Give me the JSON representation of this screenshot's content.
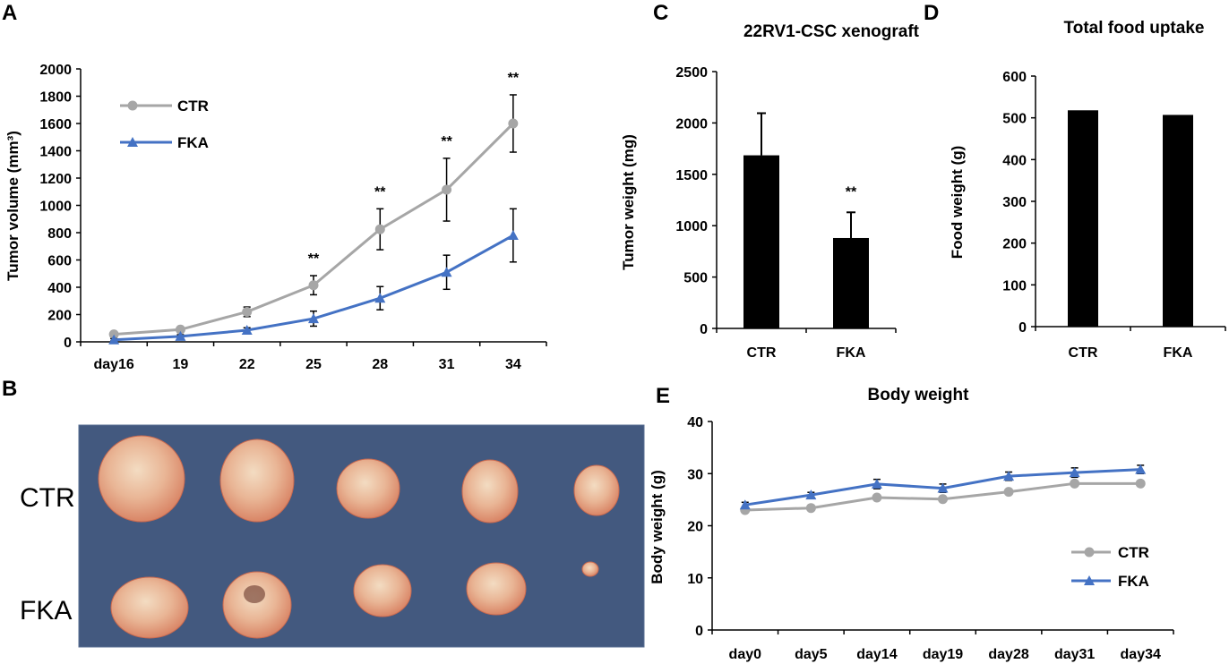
{
  "panels": {
    "A": "A",
    "B": "B",
    "C": "C",
    "D": "D",
    "E": "E"
  },
  "colors": {
    "ctr": "#a6a6a6",
    "fka": "#4472c4",
    "bar": "#000000",
    "photo_bg": "#43597f"
  },
  "chart_data": [
    {
      "id": "A",
      "type": "line",
      "title": "",
      "ylabel": "Tumor volume (mm³)",
      "xlabel": "",
      "categories": [
        "day16",
        "19",
        "22",
        "25",
        "28",
        "31",
        "34"
      ],
      "ylim": [
        0,
        2000
      ],
      "yticks": [
        0,
        200,
        400,
        600,
        800,
        1000,
        1200,
        1400,
        1600,
        1800,
        2000
      ],
      "series": [
        {
          "name": "CTR",
          "color": "#a6a6a6",
          "marker": "circle",
          "values": [
            55,
            90,
            220,
            415,
            825,
            1115,
            1600
          ],
          "errors": [
            12,
            18,
            35,
            70,
            150,
            230,
            210
          ]
        },
        {
          "name": "FKA",
          "color": "#4472c4",
          "marker": "triangle",
          "values": [
            15,
            40,
            85,
            170,
            320,
            510,
            780
          ],
          "errors": [
            8,
            12,
            18,
            55,
            85,
            125,
            195
          ]
        }
      ],
      "annotations": [
        {
          "category": "25",
          "text": "**"
        },
        {
          "category": "28",
          "text": "**"
        },
        {
          "category": "31",
          "text": "**"
        },
        {
          "category": "34",
          "text": "**"
        }
      ],
      "legend": "top-left"
    },
    {
      "id": "C",
      "type": "bar",
      "title": "22RV1-CSC xenograft",
      "ylabel": "Tumor weight (mg)",
      "xlabel": "",
      "categories": [
        "CTR",
        "FKA"
      ],
      "values": [
        1685,
        880
      ],
      "errors": [
        410,
        250
      ],
      "ylim": [
        0,
        2500
      ],
      "yticks": [
        0,
        500,
        1000,
        1500,
        2000,
        2500
      ],
      "annotations": [
        {
          "category": "FKA",
          "text": "**"
        }
      ]
    },
    {
      "id": "D",
      "type": "bar",
      "title": "Total food uptake",
      "ylabel": "Food weight (g)",
      "xlabel": "",
      "categories": [
        "CTR",
        "FKA"
      ],
      "values": [
        518,
        507
      ],
      "ylim": [
        0,
        600
      ],
      "yticks": [
        0,
        100,
        200,
        300,
        400,
        500,
        600
      ]
    },
    {
      "id": "E",
      "type": "line",
      "title": "Body weight",
      "ylabel": "Body weight (g)",
      "xlabel": "",
      "categories": [
        "day0",
        "day5",
        "day14",
        "day19",
        "day28",
        "day31",
        "day34"
      ],
      "ylim": [
        0,
        40
      ],
      "yticks": [
        0,
        10,
        20,
        30,
        40
      ],
      "series": [
        {
          "name": "CTR",
          "color": "#a6a6a6",
          "marker": "circle",
          "values": [
            23.0,
            23.4,
            25.4,
            25.1,
            26.5,
            28.1,
            28.1
          ],
          "errors": [
            0.3,
            0.3,
            0.3,
            0.3,
            0.4,
            0.4,
            0.4
          ]
        },
        {
          "name": "FKA",
          "color": "#4472c4",
          "marker": "triangle",
          "values": [
            24.0,
            25.9,
            28.0,
            27.2,
            29.5,
            30.2,
            30.8
          ],
          "errors": [
            0.5,
            0.5,
            0.9,
            0.8,
            0.8,
            0.9,
            0.8
          ]
        }
      ],
      "legend": "bottom-right"
    }
  ],
  "photo": {
    "row_labels": [
      "CTR",
      "FKA"
    ]
  }
}
